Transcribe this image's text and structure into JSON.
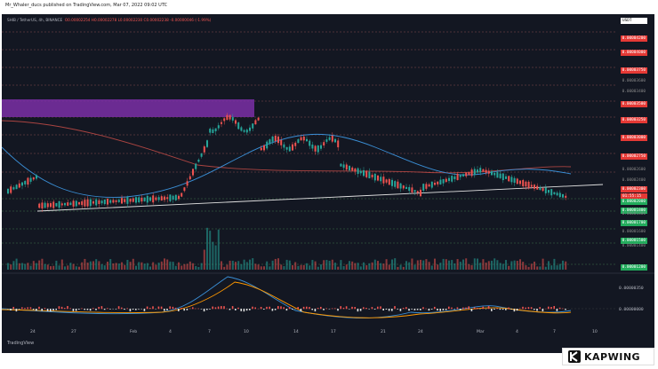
{
  "publish_line": "Mr_Whaler_ducs published on TradingView.com, Mar 07, 2022 09:02 UTC",
  "legend": {
    "symbol": "SHIB / TetherUS, 4h, BINANCE",
    "ohlc": "O0.00002254  H0.00002278  L0.00002230  C0.00002238  -0.00000046 (-1.99%)"
  },
  "price_tags": [
    {
      "label": "USDT",
      "style": "white"
    },
    {
      "label": "0.00004200",
      "style": "red"
    },
    {
      "label": "0.00004000",
      "style": "red"
    },
    {
      "label": "0.00003750",
      "style": "red"
    },
    {
      "label": "0.00003600",
      "style": "gray"
    },
    {
      "label": "0.00003400",
      "style": "gray"
    },
    {
      "label": "0.00003500",
      "style": "red"
    },
    {
      "label": "0.00003250",
      "style": "red"
    },
    {
      "label": "0.00003000",
      "style": "red"
    },
    {
      "label": "0.00002750",
      "style": "red"
    },
    {
      "label": "0.00002600",
      "style": "gray"
    },
    {
      "label": "0.00002400",
      "style": "gray"
    },
    {
      "label": "0.00002300",
      "style": "red"
    },
    {
      "label": "01:55:15",
      "style": "red"
    },
    {
      "label": "0.00002000",
      "style": "green"
    },
    {
      "label": "0.00001800",
      "style": "green"
    },
    {
      "label": "0.00001800",
      "style": "gray"
    },
    {
      "label": "0.00001700",
      "style": "green"
    },
    {
      "label": "0.00001600",
      "style": "gray"
    },
    {
      "label": "0.00001500",
      "style": "green"
    },
    {
      "label": "0.00001400",
      "style": "gray"
    },
    {
      "label": "0.00001200",
      "style": "green"
    }
  ],
  "indicator_axis": [
    "0.00000350",
    "0.00000000"
  ],
  "x_labels": [
    "24",
    "27",
    "Feb",
    "4",
    "7",
    "10",
    "14",
    "17",
    "21",
    "24",
    "Mar",
    "4",
    "7",
    "10"
  ],
  "tv_logo": "TradingView",
  "watermark": "KAPWING",
  "colors": {
    "bg": "#131722",
    "up": "#26a69a",
    "down": "#ef5350",
    "ma_blue": "#3a8fd6",
    "ma_red": "#d2504a",
    "zone": "#7b2fa6"
  }
}
